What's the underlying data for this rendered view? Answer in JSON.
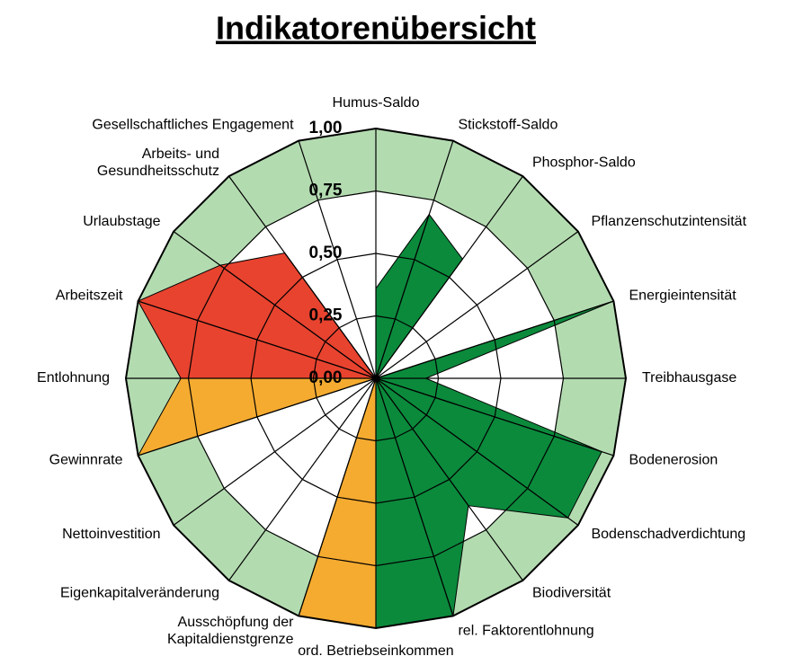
{
  "chart_data": {
    "type": "radar",
    "title": "Indikatorenübersicht",
    "categories": [
      "Humus-Saldo",
      "Stickstoff-Saldo",
      "Phosphor-Saldo",
      "Pflanzenschutzintensität",
      "Energieintensität",
      "Treibhausgase",
      "Bodenerosion",
      "Bodenschadverdichtung",
      "Biodiversität",
      "rel. Faktorentlohnung",
      "ord. Betriebseinkommen",
      [
        "Ausschöpfung der",
        "Kapitaldienstgrenze"
      ],
      "Eigenkapitalveränderung",
      "Nettoinvestition",
      "Gewinnrate",
      "Entlohnung",
      "Arbeitszeit",
      "Urlaubstage",
      [
        "Arbeits- und",
        "Gesundheitsschutz"
      ],
      "Gesellschaftliches Engagement"
    ],
    "values": [
      0.36,
      0.69,
      0.59,
      0,
      1.0,
      0.2,
      0.95,
      0.95,
      0.63,
      1.0,
      1.0,
      1.0,
      0,
      0,
      1.0,
      0.78,
      1.0,
      0.77,
      0.62,
      0
    ],
    "colors": [
      "#0b8a3c",
      "#0b8a3c",
      "#0b8a3c",
      "#0b8a3c",
      "#0b8a3c",
      "#0b8a3c",
      "#0b8a3c",
      "#0b8a3c",
      "#0b8a3c",
      "#0b8a3c",
      "#f5ab30",
      "#f5ab30",
      "#f5ab30",
      "#f5ab30",
      "#f5ab30",
      "#e8432f",
      "#e8432f",
      "#e8432f",
      "#e8432f",
      "#e8432f"
    ],
    "band_color": "#b3dbb0",
    "rlim": [
      0,
      1
    ],
    "rticks": [
      {
        "value": 0,
        "label": "0,00"
      },
      {
        "value": 0.25,
        "label": "0,25"
      },
      {
        "value": 0.5,
        "label": "0,50"
      },
      {
        "value": 0.75,
        "label": "0,75"
      },
      {
        "value": 1,
        "label": "1,00"
      }
    ],
    "band_from": 0.75
  }
}
